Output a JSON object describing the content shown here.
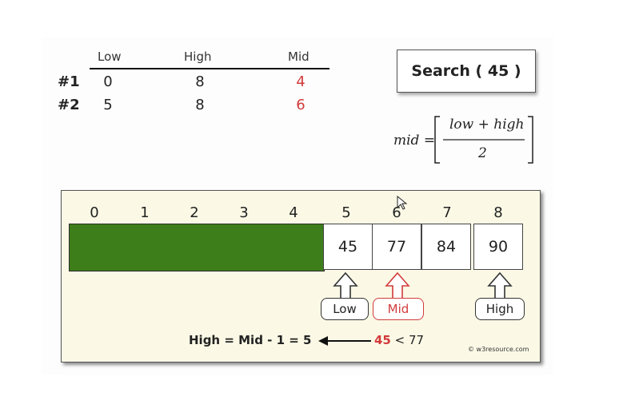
{
  "table": {
    "headers": [
      "Low",
      "High",
      "Mid"
    ],
    "rows": [
      {
        "label": "#1",
        "low": "0",
        "high": "8",
        "mid": "4"
      },
      {
        "label": "#2",
        "low": "5",
        "high": "8",
        "mid": "6"
      }
    ]
  },
  "search_box": {
    "text": "Search ( 45 )"
  },
  "formula": {
    "lhs": "mid =",
    "numerator": "low + high",
    "denominator": "2"
  },
  "array": {
    "indices": [
      "0",
      "1",
      "2",
      "3",
      "4",
      "5",
      "6",
      "7",
      "8"
    ],
    "visible_values": [
      {
        "index": "5",
        "value": "45"
      },
      {
        "index": "6",
        "value": "77"
      },
      {
        "index": "7",
        "value": "84"
      },
      {
        "index": "8",
        "value": "90"
      }
    ]
  },
  "pointers": {
    "low": "Low",
    "mid": "Mid",
    "high": "High"
  },
  "equation": "High = Mid - 1 = 5",
  "comparison": {
    "value": "45",
    "rest": "< 77"
  },
  "copyright": "© w3resource.com",
  "colors": {
    "eliminated": "#3d7e1a",
    "highlight": "#d23b3b",
    "panel": "#fbf9e6"
  }
}
